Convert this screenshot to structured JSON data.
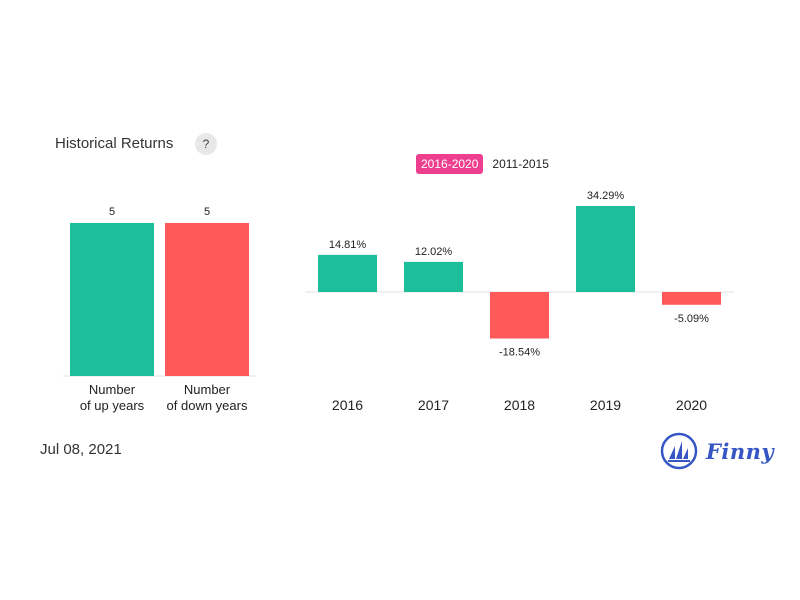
{
  "title": "Historical Returns",
  "help_label": "?",
  "tabs": [
    {
      "label": "2016-2020",
      "active": true
    },
    {
      "label": "2011-2015",
      "active": false
    }
  ],
  "date": "Jul 08, 2021",
  "brand": "Finny",
  "colors": {
    "positive": "#1dbf9b",
    "negative": "#ff5a59",
    "accent": "#ee3f8f",
    "brand": "#3556c4"
  },
  "chart_data": [
    {
      "type": "bar",
      "categories": [
        "Number\nof up years",
        "Number\nof down years"
      ],
      "values": [
        5,
        5
      ],
      "data_labels": [
        "5",
        "5"
      ],
      "ylim": [
        0,
        5
      ]
    },
    {
      "type": "bar",
      "categories": [
        "2016",
        "2017",
        "2018",
        "2019",
        "2020"
      ],
      "values": [
        14.81,
        12.02,
        -18.54,
        34.29,
        -5.09
      ],
      "data_labels": [
        "14.81%",
        "12.02%",
        "-18.54%",
        "34.29%",
        "-5.09%"
      ],
      "ylim": [
        -18.54,
        34.29
      ]
    }
  ]
}
